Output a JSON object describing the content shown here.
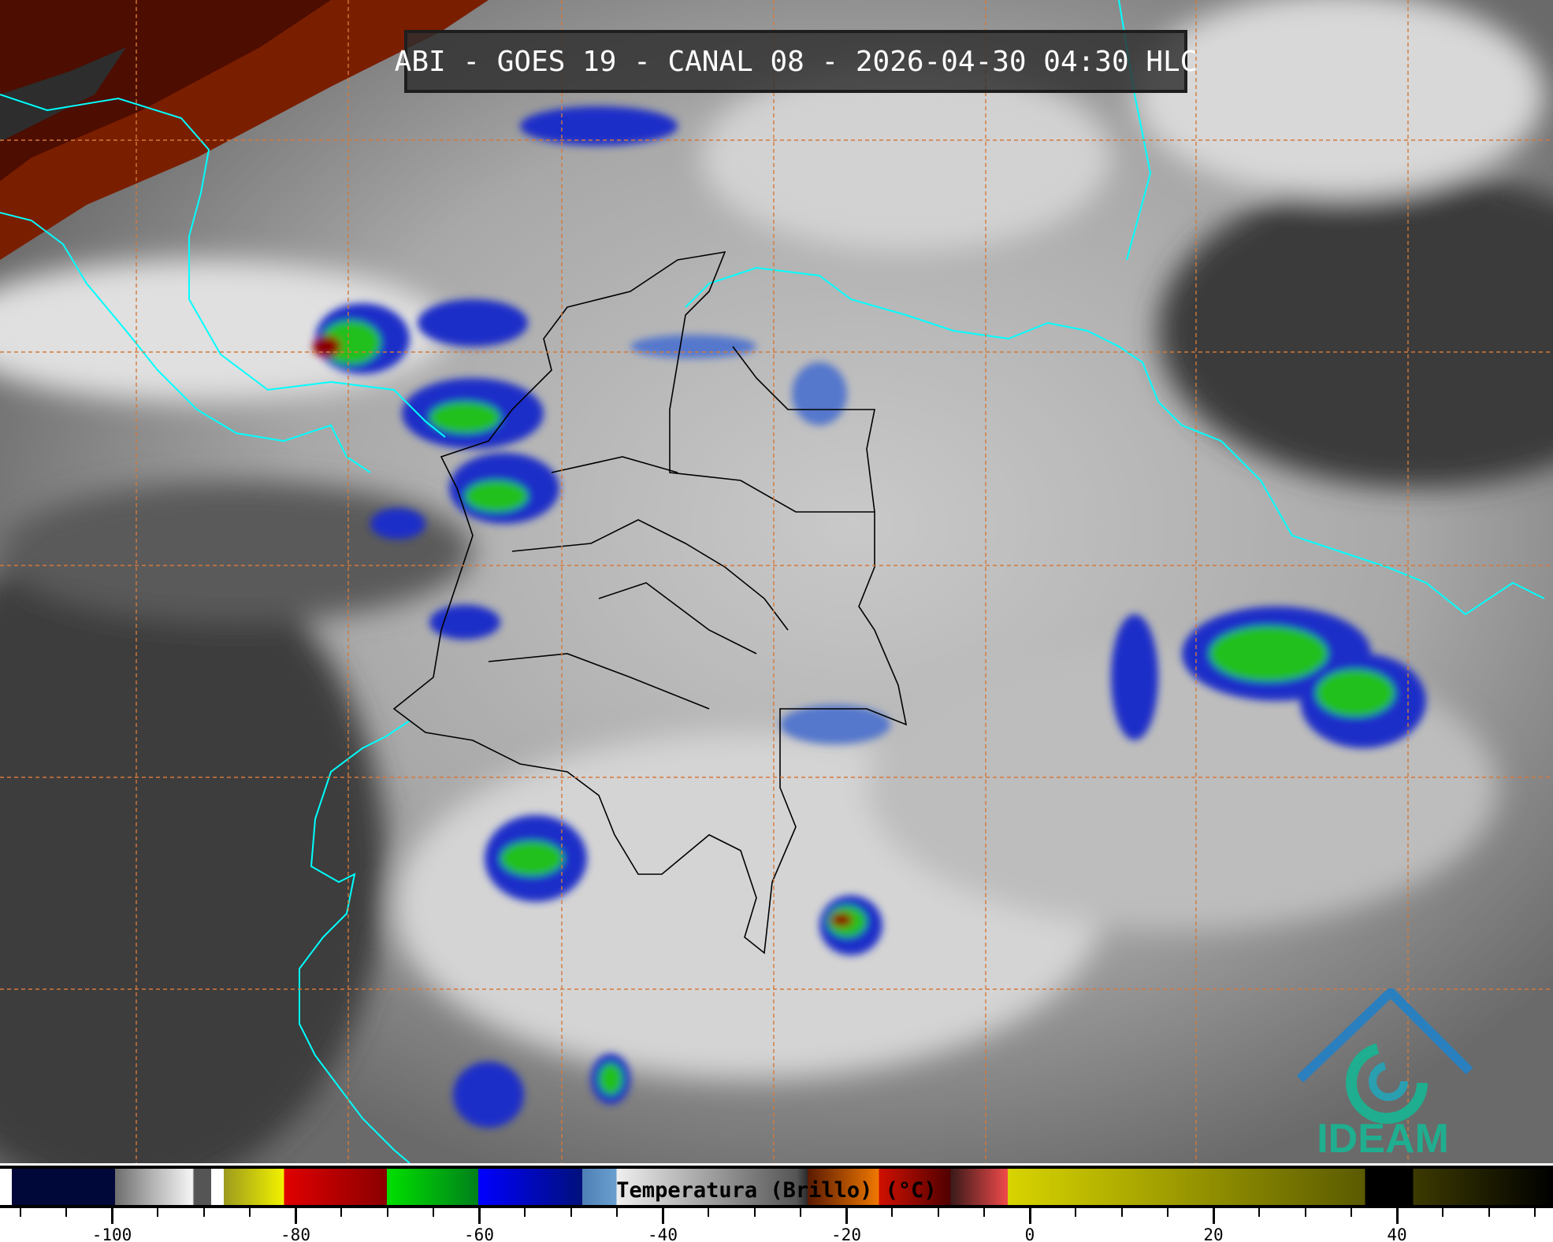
{
  "title": "ABI - GOES 19 - CANAL 08 - 2026-04-30 04:30 HLC",
  "colorbar": {
    "label": "Temperatura (Brillo) (°C)",
    "tick_labels": [
      "-100",
      "-80",
      "-60",
      "-40",
      "-20",
      "0",
      "20",
      "40"
    ],
    "tick_values": [
      -100,
      -80,
      -60,
      -40,
      -20,
      0,
      20,
      40
    ],
    "range_c": [
      -112,
      55
    ]
  },
  "logo": {
    "text": "IDEAM",
    "color": "#1fae8f",
    "accent": "#2a7fbf"
  },
  "colors": {
    "coastline": "#00ffff",
    "borders": "#000000",
    "gridlines": "#d4793a",
    "title_bg": "#2d2d2d"
  }
}
